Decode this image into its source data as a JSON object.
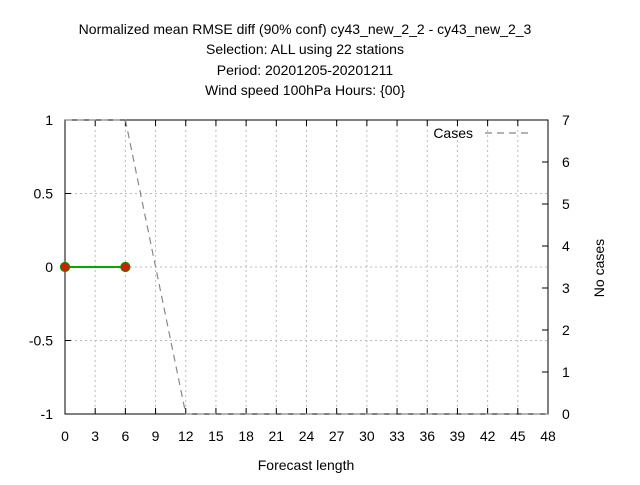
{
  "chart_data": {
    "type": "line",
    "title_lines": [
      "Normalized mean RMSE diff (90% conf) cy43_new_2_2 - cy43_new_2_3",
      "Selection: ALL using    22 stations",
      "Period: 20201205-20201211",
      "Wind speed 100hPa   Hours: {00}"
    ],
    "xlabel": "Forecast length",
    "ylabel": "",
    "y2label": "No cases",
    "xlim": [
      0,
      48
    ],
    "ylim": [
      -1,
      1
    ],
    "y2lim": [
      0,
      7
    ],
    "x_ticks": [
      0,
      3,
      6,
      9,
      12,
      15,
      18,
      21,
      24,
      27,
      30,
      33,
      36,
      39,
      42,
      45,
      48
    ],
    "y_ticks": [
      1,
      0.5,
      0,
      -0.5,
      -1
    ],
    "y_tick_labels": [
      "1",
      "0.5",
      "0",
      "-0.5",
      "-1"
    ],
    "y2_ticks": [
      7,
      6,
      5,
      4,
      3,
      2,
      1,
      0
    ],
    "grid": true,
    "legend_position": "top-right",
    "series": [
      {
        "axis": "y",
        "style": "solid-green-with-red-points",
        "color": "#00aa00",
        "point_color": "#cc2200",
        "x": [
          0,
          6
        ],
        "values": [
          0,
          0
        ]
      },
      {
        "name": "Cases",
        "axis": "y2",
        "style": "dashed-gray",
        "color": "#888888",
        "x": [
          0,
          6,
          12,
          48
        ],
        "values": [
          7,
          7,
          0,
          0
        ]
      }
    ]
  }
}
